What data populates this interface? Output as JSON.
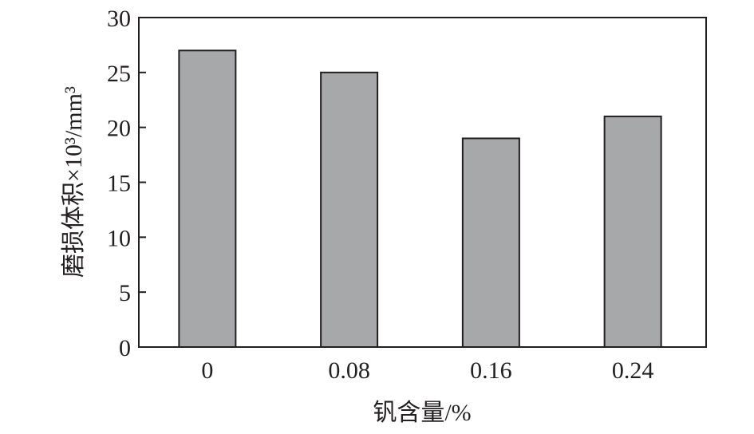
{
  "chart_data": {
    "type": "bar",
    "categories": [
      "0",
      "0.08",
      "0.16",
      "0.24"
    ],
    "values": [
      27,
      25,
      19,
      21
    ],
    "title": "",
    "xlabel": "钒含量/%",
    "ylabel": "磨损体积×10³/mm³",
    "ylim": [
      0,
      30
    ],
    "yticks": [
      "0",
      "5",
      "10",
      "15",
      "20",
      "25",
      "30"
    ],
    "grid": false,
    "colors": {
      "bar": "#a7a8aa",
      "edge": "#231f20",
      "axis": "#231f20"
    }
  }
}
